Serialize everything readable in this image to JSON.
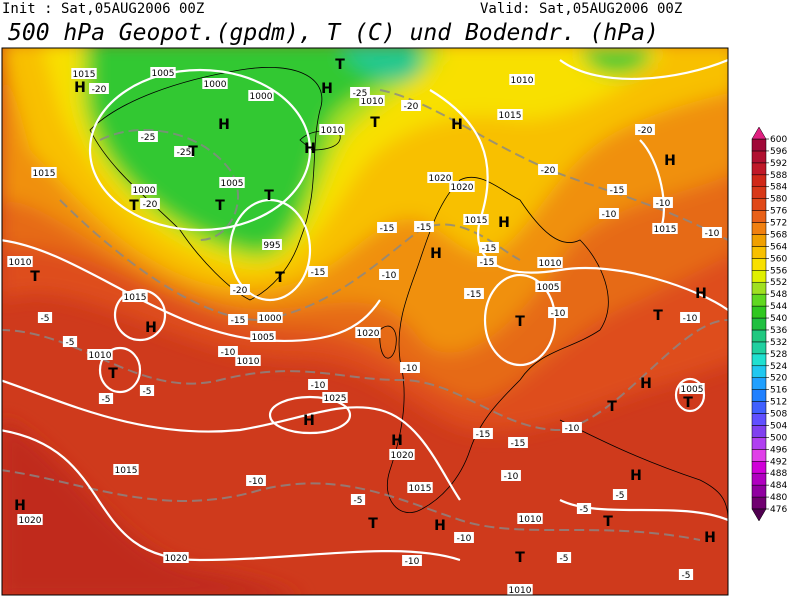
{
  "header": {
    "init": "Init : Sat,05AUG2006 00Z",
    "valid": "Valid: Sat,05AUG2006 00Z",
    "title": "500 hPa Geopot.(gpdm), T (C) und Bodendr. (hPa)"
  },
  "colorbar": {
    "levels": [
      476,
      480,
      484,
      488,
      492,
      496,
      500,
      504,
      508,
      512,
      516,
      520,
      524,
      528,
      532,
      536,
      540,
      544,
      548,
      552,
      556,
      560,
      564,
      568,
      572,
      576,
      580,
      584,
      588,
      592,
      596,
      600
    ],
    "colors": [
      "#700070",
      "#9000a0",
      "#b000c0",
      "#d000d8",
      "#e040e8",
      "#b040f0",
      "#8040f0",
      "#6050ff",
      "#4060ff",
      "#2080ff",
      "#20a0ff",
      "#20c8f0",
      "#20e0d0",
      "#20d0a0",
      "#20c880",
      "#20c040",
      "#30c820",
      "#60d820",
      "#a0e020",
      "#e0f000",
      "#f8e000",
      "#f8c000",
      "#f0a000",
      "#f08010",
      "#e86018",
      "#e04818",
      "#d83818",
      "#d02818",
      "#c01828",
      "#b01030",
      "#a00838"
    ],
    "under_color": "#500050",
    "over_color": "#e02080"
  },
  "map_labels": [
    "1015",
    "1005",
    "1000",
    "1000",
    "1010",
    "1010",
    "1015",
    "1000",
    "1005",
    "995",
    "1000",
    "1005",
    "1010",
    "1010",
    "1015",
    "1010",
    "1020",
    "1025",
    "1020",
    "1015",
    "1015",
    "1020",
    "1020",
    "1010",
    "1010",
    "1010",
    "1005",
    "1005",
    "1015",
    "1020",
    "1020",
    "1015",
    "1010",
    "1015",
    "-20",
    "-25",
    "-25",
    "-20",
    "-25",
    "-20",
    "-20",
    "-20",
    "-15",
    "-10",
    "-10",
    "-10",
    "-15",
    "-15",
    "-15",
    "-20",
    "-15",
    "-10",
    "-10",
    "-15",
    "-15",
    "-15",
    "-10",
    "-10",
    "-5",
    "-5",
    "-5",
    "-5",
    "-10",
    "-10",
    "-10",
    "-15",
    "-15",
    "-10",
    "-10",
    "-5",
    "-5",
    "-5",
    "-10",
    "-10",
    "-5",
    "-5"
  ],
  "map_markers": [
    "H",
    "H",
    "H",
    "H",
    "H",
    "H",
    "H",
    "H",
    "H",
    "H",
    "H",
    "H",
    "H",
    "H",
    "H",
    "H",
    "H",
    "T",
    "T",
    "T",
    "T",
    "T",
    "T",
    "T",
    "T",
    "T",
    "T",
    "T",
    "T",
    "T",
    "T",
    "T",
    "T"
  ]
}
